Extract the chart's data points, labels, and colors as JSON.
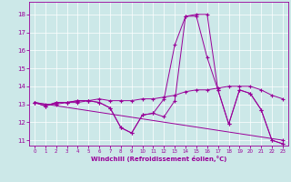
{
  "xlabel": "Windchill (Refroidissement éolien,°C)",
  "ylabel": "",
  "xlim": [
    -0.5,
    23.5
  ],
  "ylim": [
    10.7,
    18.7
  ],
  "yticks": [
    11,
    12,
    13,
    14,
    15,
    16,
    17,
    18
  ],
  "xticks": [
    0,
    1,
    2,
    3,
    4,
    5,
    6,
    7,
    8,
    9,
    10,
    11,
    12,
    13,
    14,
    15,
    16,
    17,
    18,
    19,
    20,
    21,
    22,
    23
  ],
  "bg_color": "#cce8e8",
  "line_color": "#990099",
  "grid_color": "#ffffff",
  "curves": [
    {
      "x": [
        0,
        1,
        2,
        3,
        4,
        5,
        6,
        7,
        8,
        9,
        10,
        11,
        12,
        13,
        14,
        15,
        16,
        17,
        18,
        19,
        20,
        21,
        22,
        23
      ],
      "y": [
        13.1,
        12.9,
        13.1,
        13.1,
        13.2,
        13.2,
        13.1,
        12.8,
        11.7,
        11.4,
        12.4,
        12.5,
        12.3,
        13.2,
        17.9,
        17.9,
        15.6,
        13.8,
        11.9,
        13.8,
        13.6,
        12.7,
        11.0,
        10.8
      ]
    },
    {
      "x": [
        0,
        1,
        2,
        3,
        4,
        5,
        6,
        7,
        8,
        9,
        10,
        11,
        12,
        13,
        14,
        15,
        16,
        17,
        18,
        19,
        20,
        21,
        22,
        23
      ],
      "y": [
        13.1,
        12.9,
        13.1,
        13.1,
        13.2,
        13.2,
        13.1,
        12.8,
        11.7,
        11.4,
        12.4,
        12.5,
        13.3,
        16.3,
        17.9,
        18.0,
        18.0,
        13.8,
        11.9,
        13.8,
        13.6,
        12.7,
        11.0,
        10.8
      ]
    },
    {
      "x": [
        0,
        23
      ],
      "y": [
        13.1,
        11.0
      ]
    },
    {
      "x": [
        0,
        1,
        2,
        3,
        4,
        5,
        6,
        7,
        8,
        9,
        10,
        11,
        12,
        13,
        14,
        15,
        16,
        17,
        18,
        19,
        20,
        21,
        22,
        23
      ],
      "y": [
        13.1,
        13.0,
        13.0,
        13.1,
        13.1,
        13.2,
        13.3,
        13.2,
        13.2,
        13.2,
        13.3,
        13.3,
        13.4,
        13.5,
        13.7,
        13.8,
        13.8,
        13.9,
        14.0,
        14.0,
        14.0,
        13.8,
        13.5,
        13.3
      ]
    }
  ]
}
